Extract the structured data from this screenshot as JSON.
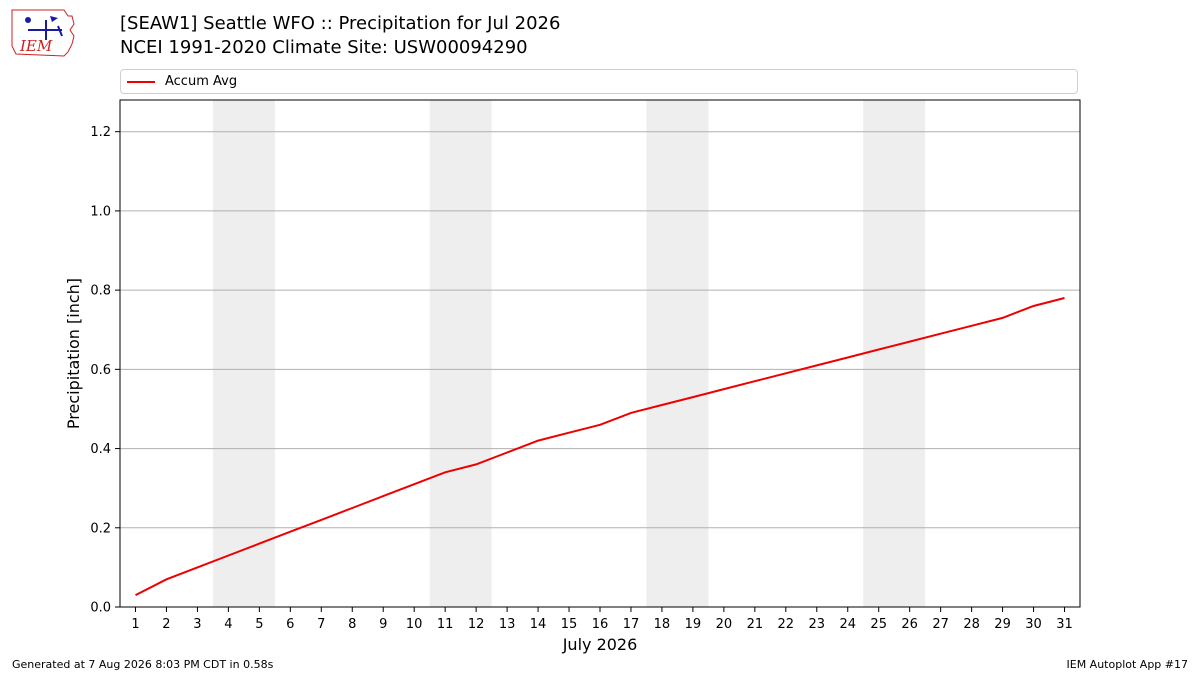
{
  "header": {
    "logo_text": "IEM",
    "title_line1": "[SEAW1] Seattle WFO :: Precipitation for Jul 2026",
    "title_line2": "NCEI 1991-2020 Climate Site: USW00094290"
  },
  "footer": {
    "left": "Generated at 7 Aug 2026 8:03 PM CDT in 0.58s",
    "right": "IEM Autoplot App #17"
  },
  "chart_data": {
    "type": "line",
    "xlabel": "July 2026",
    "ylabel": "Precipitation [inch]",
    "xlim": [
      0.5,
      31.5
    ],
    "ylim": [
      0,
      1.28
    ],
    "yticks": [
      0.0,
      0.2,
      0.4,
      0.6,
      0.8,
      1.0,
      1.2
    ],
    "ytick_labels": [
      "0.0",
      "0.2",
      "0.4",
      "0.6",
      "0.8",
      "1.0",
      "1.2"
    ],
    "x": [
      1,
      2,
      3,
      4,
      5,
      6,
      7,
      8,
      9,
      10,
      11,
      12,
      13,
      14,
      15,
      16,
      17,
      18,
      19,
      20,
      21,
      22,
      23,
      24,
      25,
      26,
      27,
      28,
      29,
      30,
      31
    ],
    "xtick_labels": [
      "1",
      "2",
      "3",
      "4",
      "5",
      "6",
      "7",
      "8",
      "9",
      "10",
      "11",
      "12",
      "13",
      "14",
      "15",
      "16",
      "17",
      "18",
      "19",
      "20",
      "21",
      "22",
      "23",
      "24",
      "25",
      "26",
      "27",
      "28",
      "29",
      "30",
      "31"
    ],
    "weekend_bands": [
      [
        3.5,
        5.5
      ],
      [
        10.5,
        12.5
      ],
      [
        17.5,
        19.5
      ],
      [
        24.5,
        26.5
      ]
    ],
    "grid": "horizontal",
    "legend_position": "top",
    "series": [
      {
        "name": "Accum Avg",
        "color": "#ee0000",
        "values": [
          0.03,
          0.07,
          0.1,
          0.13,
          0.16,
          0.19,
          0.22,
          0.25,
          0.28,
          0.31,
          0.34,
          0.36,
          0.39,
          0.42,
          0.44,
          0.46,
          0.49,
          0.51,
          0.53,
          0.55,
          0.57,
          0.59,
          0.61,
          0.63,
          0.65,
          0.67,
          0.69,
          0.71,
          0.73,
          0.76,
          0.78
        ]
      }
    ]
  }
}
